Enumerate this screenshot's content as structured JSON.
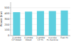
{
  "chart_data": {
    "type": "bar",
    "categories": [
      "2-stroke\nCP diesel",
      "4-stroke\ndiesel",
      "2-stroke\nCP H₂",
      "4-stroke\nH₂ Rankine",
      "Fuel H₂"
    ],
    "values": [
      420,
      430,
      440,
      440,
      450
    ],
    "color": "#5ecfdf",
    "ylabel": "Power (kw)",
    "ylim": [
      0,
      600
    ],
    "yticks": [
      0,
      100,
      200,
      300,
      400,
      500
    ],
    "grid": true
  }
}
